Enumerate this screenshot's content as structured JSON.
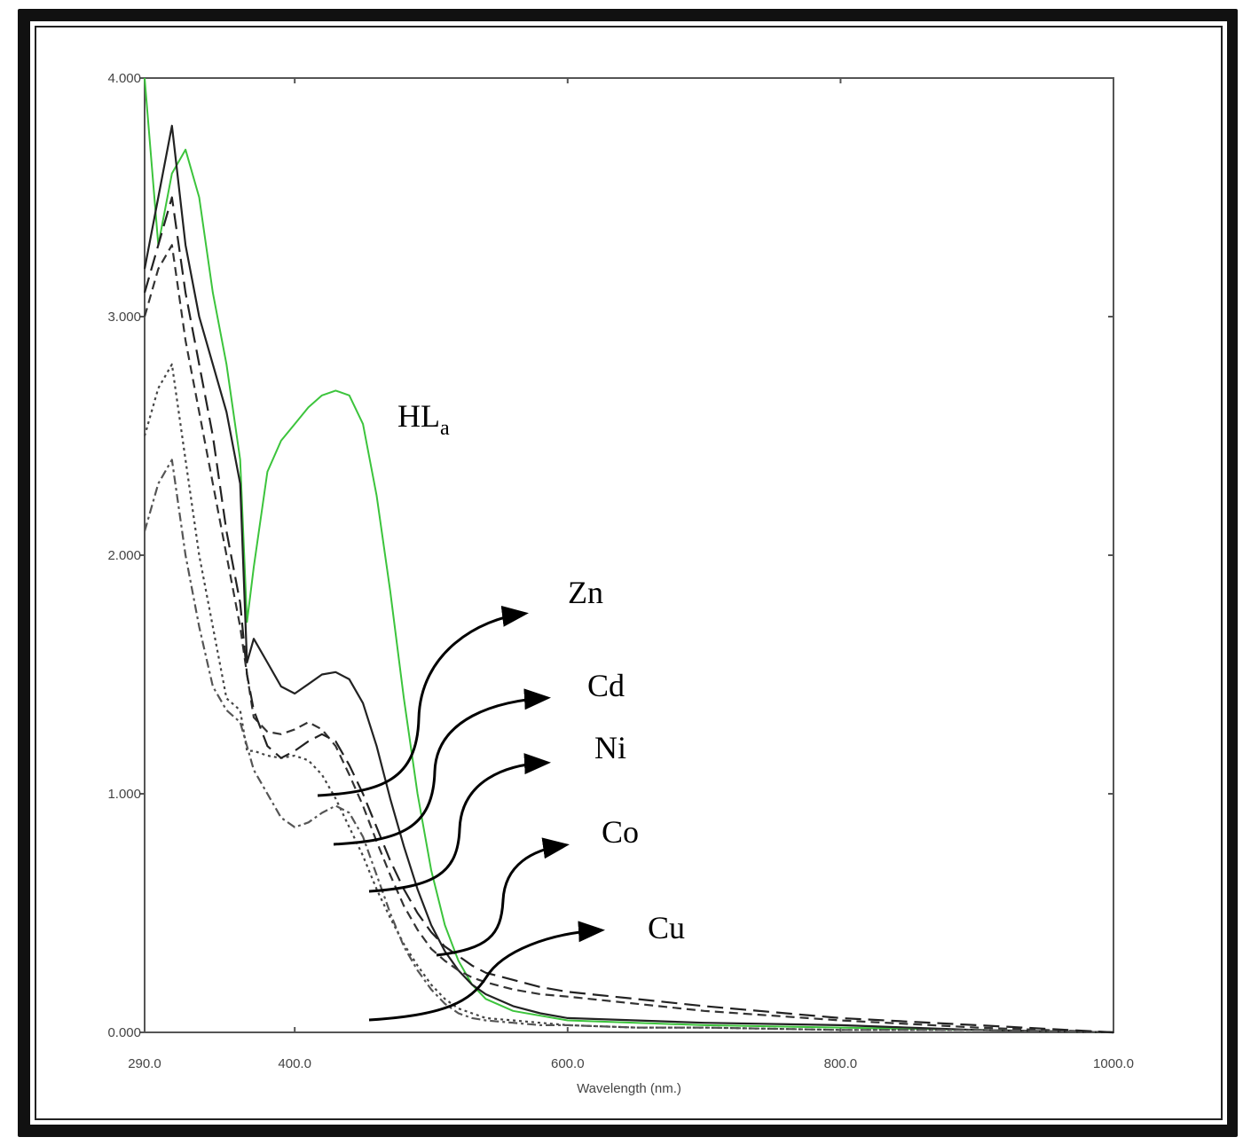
{
  "chart_data": {
    "type": "line",
    "xlabel": "Wavelength (nm.)",
    "ylabel": "",
    "xlim": [
      290,
      1000
    ],
    "ylim": [
      0,
      4
    ],
    "xticks": [
      "290.0",
      "400.0",
      "600.0",
      "800.0",
      "1000.0"
    ],
    "yticks": [
      "0.000",
      "1.000",
      "2.000",
      "3.000",
      "4.000"
    ],
    "grid": false,
    "annotations": {
      "hla_main": "HL",
      "hla_sub": "a",
      "zn": "Zn",
      "cd": "Cd",
      "ni": "Ni",
      "co": "Co",
      "cu": "Cu"
    },
    "series": [
      {
        "key": "HLa",
        "color": "#3cc43c",
        "style": "solid",
        "x": [
          290,
          300,
          310,
          320,
          330,
          340,
          350,
          360,
          365,
          370,
          380,
          390,
          400,
          410,
          420,
          430,
          440,
          450,
          460,
          470,
          480,
          490,
          500,
          510,
          520,
          530,
          540,
          560,
          580,
          600,
          650,
          700,
          800,
          900,
          1000
        ],
        "y": [
          4.0,
          3.3,
          3.6,
          3.7,
          3.5,
          3.1,
          2.8,
          2.4,
          1.72,
          1.95,
          2.35,
          2.48,
          2.55,
          2.62,
          2.67,
          2.69,
          2.67,
          2.55,
          2.25,
          1.85,
          1.4,
          1.0,
          0.68,
          0.45,
          0.3,
          0.2,
          0.14,
          0.09,
          0.07,
          0.05,
          0.04,
          0.03,
          0.02,
          0.01,
          0.0
        ]
      },
      {
        "key": "Zn",
        "color": "#222222",
        "style": "solid",
        "x": [
          290,
          300,
          310,
          320,
          330,
          340,
          350,
          360,
          365,
          370,
          380,
          390,
          400,
          410,
          420,
          430,
          440,
          450,
          460,
          470,
          480,
          490,
          500,
          510,
          520,
          530,
          540,
          560,
          580,
          600,
          650,
          700,
          800,
          900,
          1000
        ],
        "y": [
          3.2,
          3.5,
          3.8,
          3.3,
          3.0,
          2.8,
          2.6,
          2.3,
          1.55,
          1.65,
          1.55,
          1.45,
          1.42,
          1.46,
          1.5,
          1.51,
          1.48,
          1.38,
          1.2,
          0.98,
          0.78,
          0.6,
          0.45,
          0.34,
          0.26,
          0.2,
          0.16,
          0.11,
          0.08,
          0.06,
          0.05,
          0.04,
          0.03,
          0.01,
          0.0
        ]
      },
      {
        "key": "Cd",
        "color": "#333333",
        "style": "dash",
        "x": [
          290,
          300,
          310,
          320,
          330,
          340,
          350,
          360,
          365,
          370,
          380,
          390,
          400,
          410,
          420,
          430,
          440,
          450,
          460,
          470,
          480,
          490,
          500,
          510,
          520,
          530,
          540,
          560,
          580,
          600,
          650,
          700,
          800,
          900,
          1000
        ],
        "y": [
          3.0,
          3.2,
          3.3,
          2.9,
          2.6,
          2.3,
          2.0,
          1.7,
          1.5,
          1.32,
          1.26,
          1.25,
          1.27,
          1.3,
          1.27,
          1.2,
          1.08,
          0.95,
          0.8,
          0.66,
          0.53,
          0.43,
          0.35,
          0.3,
          0.26,
          0.23,
          0.21,
          0.18,
          0.16,
          0.15,
          0.12,
          0.09,
          0.05,
          0.02,
          0.0
        ]
      },
      {
        "key": "Ni",
        "color": "#444444",
        "style": "dot",
        "x": [
          290,
          300,
          310,
          320,
          330,
          340,
          350,
          360,
          365,
          370,
          380,
          390,
          400,
          410,
          420,
          430,
          440,
          450,
          460,
          470,
          480,
          490,
          500,
          510,
          520,
          530,
          540,
          560,
          580,
          600,
          650,
          700,
          800,
          900,
          1000
        ],
        "y": [
          2.5,
          2.7,
          2.8,
          2.4,
          2.0,
          1.7,
          1.4,
          1.35,
          1.18,
          1.18,
          1.16,
          1.15,
          1.16,
          1.14,
          1.08,
          0.98,
          0.86,
          0.74,
          0.6,
          0.48,
          0.37,
          0.28,
          0.2,
          0.14,
          0.1,
          0.08,
          0.06,
          0.05,
          0.04,
          0.03,
          0.02,
          0.02,
          0.01,
          0.01,
          0.0
        ]
      },
      {
        "key": "Co",
        "color": "#555555",
        "style": "dashdot",
        "x": [
          290,
          300,
          310,
          320,
          330,
          340,
          350,
          360,
          365,
          370,
          380,
          390,
          400,
          410,
          420,
          430,
          440,
          450,
          460,
          470,
          480,
          490,
          500,
          510,
          520,
          530,
          540,
          560,
          580,
          600,
          650,
          700,
          800,
          900,
          1000
        ],
        "y": [
          2.1,
          2.3,
          2.4,
          2.0,
          1.7,
          1.45,
          1.35,
          1.3,
          1.2,
          1.1,
          1.0,
          0.9,
          0.86,
          0.88,
          0.92,
          0.95,
          0.92,
          0.82,
          0.66,
          0.5,
          0.36,
          0.26,
          0.18,
          0.12,
          0.08,
          0.06,
          0.05,
          0.04,
          0.03,
          0.03,
          0.02,
          0.02,
          0.01,
          0.01,
          0.0
        ]
      },
      {
        "key": "Cu",
        "color": "#222222",
        "style": "longdash",
        "x": [
          290,
          300,
          310,
          320,
          330,
          340,
          350,
          360,
          365,
          370,
          380,
          390,
          400,
          410,
          420,
          430,
          440,
          450,
          460,
          470,
          480,
          490,
          500,
          510,
          520,
          530,
          540,
          560,
          580,
          600,
          650,
          700,
          800,
          900,
          1000
        ],
        "y": [
          3.1,
          3.3,
          3.5,
          3.1,
          2.8,
          2.5,
          2.1,
          1.8,
          1.5,
          1.35,
          1.2,
          1.15,
          1.18,
          1.22,
          1.25,
          1.22,
          1.12,
          1.0,
          0.86,
          0.72,
          0.6,
          0.5,
          0.42,
          0.36,
          0.32,
          0.28,
          0.25,
          0.22,
          0.19,
          0.17,
          0.14,
          0.11,
          0.06,
          0.03,
          0.0
        ]
      }
    ]
  }
}
